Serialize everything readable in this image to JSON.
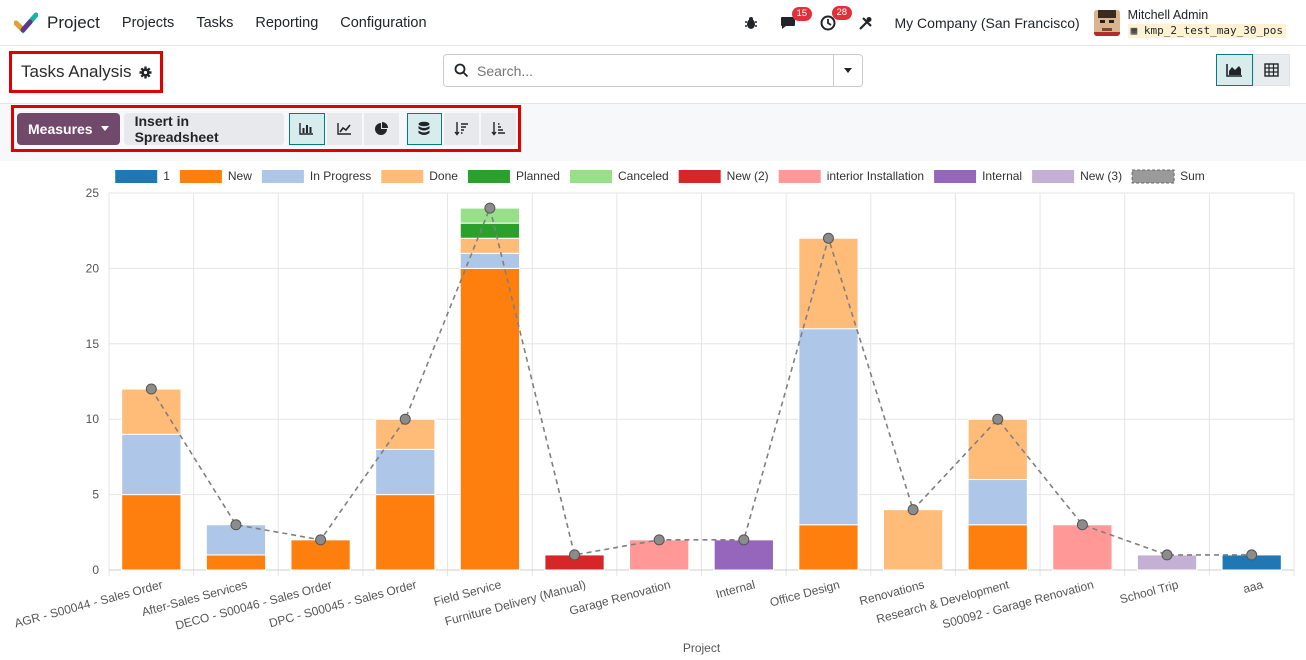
{
  "navbar": {
    "app_name": "Project",
    "menu": [
      "Projects",
      "Tasks",
      "Reporting",
      "Configuration"
    ],
    "messages_count": "15",
    "activities_count": "28",
    "company": "My Company (San Francisco)",
    "user_name": "Mitchell Admin",
    "db_name": "kmp_2_test_may_30_pos",
    "icons": [
      "bug-icon",
      "chat-icon",
      "clock-icon",
      "tools-icon"
    ]
  },
  "control": {
    "title": "Tasks Analysis",
    "search_placeholder": "Search...",
    "views": [
      "graph-view",
      "pivot-view"
    ]
  },
  "toolbar": {
    "measures_label": "Measures",
    "insert_label": "Insert in Spreadsheet",
    "buttons": [
      "bar-chart-icon",
      "line-chart-icon",
      "pie-chart-icon",
      "stacked-icon",
      "sort-desc-icon",
      "sort-asc-icon"
    ]
  },
  "colors": {
    "brand": "#71496b",
    "accent": "#017e84"
  },
  "chart_data": {
    "type": "bar",
    "stacked": true,
    "xlabel": "Project",
    "ylabel": "",
    "ylim": [
      0,
      25
    ],
    "yticks": [
      0,
      5,
      10,
      15,
      20,
      25
    ],
    "grid": true,
    "legend": "top",
    "categories": [
      "AGR - S00044 - Sales Order",
      "After-Sales Services",
      "DECO - S00046 - Sales Order",
      "DPC - S00045 - Sales Order",
      "Field Service",
      "Furniture Delivery (Manual)",
      "Garage Renovation",
      "Internal",
      "Office Design",
      "Renovations",
      "Research & Development",
      "S00092 - Garage Renovation",
      "School Trip",
      "aaa"
    ],
    "series": [
      {
        "name": "1",
        "color": "#1f77b4",
        "values": [
          0,
          0,
          0,
          0,
          0,
          0,
          0,
          0,
          0,
          0,
          0,
          0,
          0,
          1
        ]
      },
      {
        "name": "New",
        "color": "#ff7f0e",
        "values": [
          5,
          1,
          2,
          5,
          20,
          0,
          0,
          0,
          3,
          0,
          3,
          0,
          0,
          0
        ]
      },
      {
        "name": "In Progress",
        "color": "#aec7e8",
        "values": [
          4,
          2,
          0,
          3,
          1,
          0,
          0,
          0,
          13,
          0,
          3,
          0,
          0,
          0
        ]
      },
      {
        "name": "Done",
        "color": "#ffbb78",
        "values": [
          3,
          0,
          0,
          2,
          1,
          0,
          0,
          0,
          6,
          4,
          4,
          0,
          0,
          0
        ]
      },
      {
        "name": "Planned",
        "color": "#2ca02c",
        "values": [
          0,
          0,
          0,
          0,
          1,
          0,
          0,
          0,
          0,
          0,
          0,
          0,
          0,
          0
        ]
      },
      {
        "name": "Canceled",
        "color": "#98df8a",
        "values": [
          0,
          0,
          0,
          0,
          1,
          0,
          0,
          0,
          0,
          0,
          0,
          0,
          0,
          0
        ]
      },
      {
        "name": "New (2)",
        "color": "#d62728",
        "values": [
          0,
          0,
          0,
          0,
          0,
          1,
          0,
          0,
          0,
          0,
          0,
          0,
          0,
          0
        ]
      },
      {
        "name": "interior Installation",
        "color": "#ff9896",
        "values": [
          0,
          0,
          0,
          0,
          0,
          0,
          2,
          0,
          0,
          0,
          0,
          3,
          0,
          0
        ]
      },
      {
        "name": "Internal",
        "color": "#9467bd",
        "values": [
          0,
          0,
          0,
          0,
          0,
          0,
          0,
          2,
          0,
          0,
          0,
          0,
          0,
          0
        ]
      },
      {
        "name": "New (3)",
        "color": "#c5b0d5",
        "values": [
          0,
          0,
          0,
          0,
          0,
          0,
          0,
          0,
          0,
          0,
          0,
          0,
          1,
          0
        ]
      }
    ],
    "sum": {
      "name": "Sum",
      "values": [
        12,
        3,
        2,
        10,
        24,
        1,
        2,
        2,
        22,
        4,
        10,
        3,
        1,
        1
      ]
    }
  }
}
